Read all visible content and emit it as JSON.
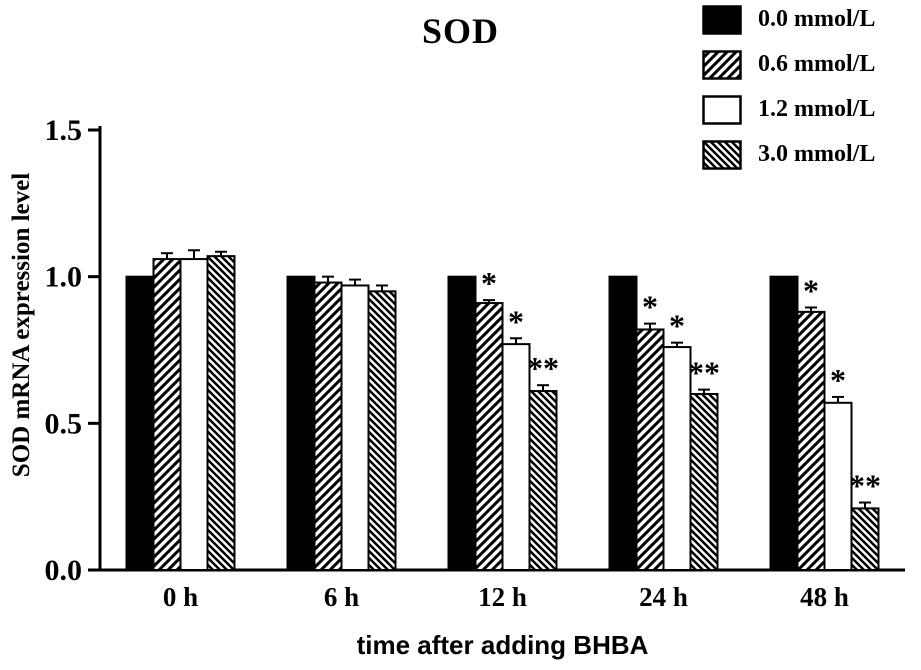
{
  "chart_data": {
    "type": "bar",
    "title": "SOD",
    "xlabel": "time after adding BHBA",
    "ylabel": "SOD mRNA expression level",
    "ylim": [
      0,
      1.5
    ],
    "yticks": [
      0.0,
      0.5,
      1.0,
      1.5
    ],
    "grid": false,
    "legend_position": "top-right",
    "axis_color": "#000000",
    "bar_edge_color": "#000000",
    "categories": [
      "0 h",
      "6 h",
      "12 h",
      "24 h",
      "48 h"
    ],
    "series": [
      {
        "name": "0.0 mmol/L",
        "fill": "black",
        "values": [
          1.0,
          1.0,
          1.0,
          1.0,
          1.0
        ],
        "errors": [
          0,
          0,
          0,
          0,
          0
        ],
        "sig": [
          "",
          "",
          "",
          "",
          ""
        ]
      },
      {
        "name": "0.6 mmol/L",
        "fill": "hatch-up",
        "values": [
          1.06,
          0.98,
          0.91,
          0.82,
          0.88
        ],
        "errors": [
          0.02,
          0.02,
          0.01,
          0.02,
          0.015
        ],
        "sig": [
          "",
          "",
          "*",
          "*",
          "*"
        ]
      },
      {
        "name": "1.2 mmol/L",
        "fill": "white",
        "values": [
          1.06,
          0.97,
          0.77,
          0.76,
          0.57
        ],
        "errors": [
          0.03,
          0.02,
          0.02,
          0.015,
          0.02
        ],
        "sig": [
          "",
          "",
          "*",
          "*",
          "*"
        ]
      },
      {
        "name": "3.0 mmol/L",
        "fill": "hatch-down",
        "values": [
          1.07,
          0.95,
          0.61,
          0.6,
          0.21
        ],
        "errors": [
          0.015,
          0.02,
          0.02,
          0.015,
          0.02
        ],
        "sig": [
          "",
          "",
          "**",
          "**",
          "**"
        ]
      }
    ]
  }
}
